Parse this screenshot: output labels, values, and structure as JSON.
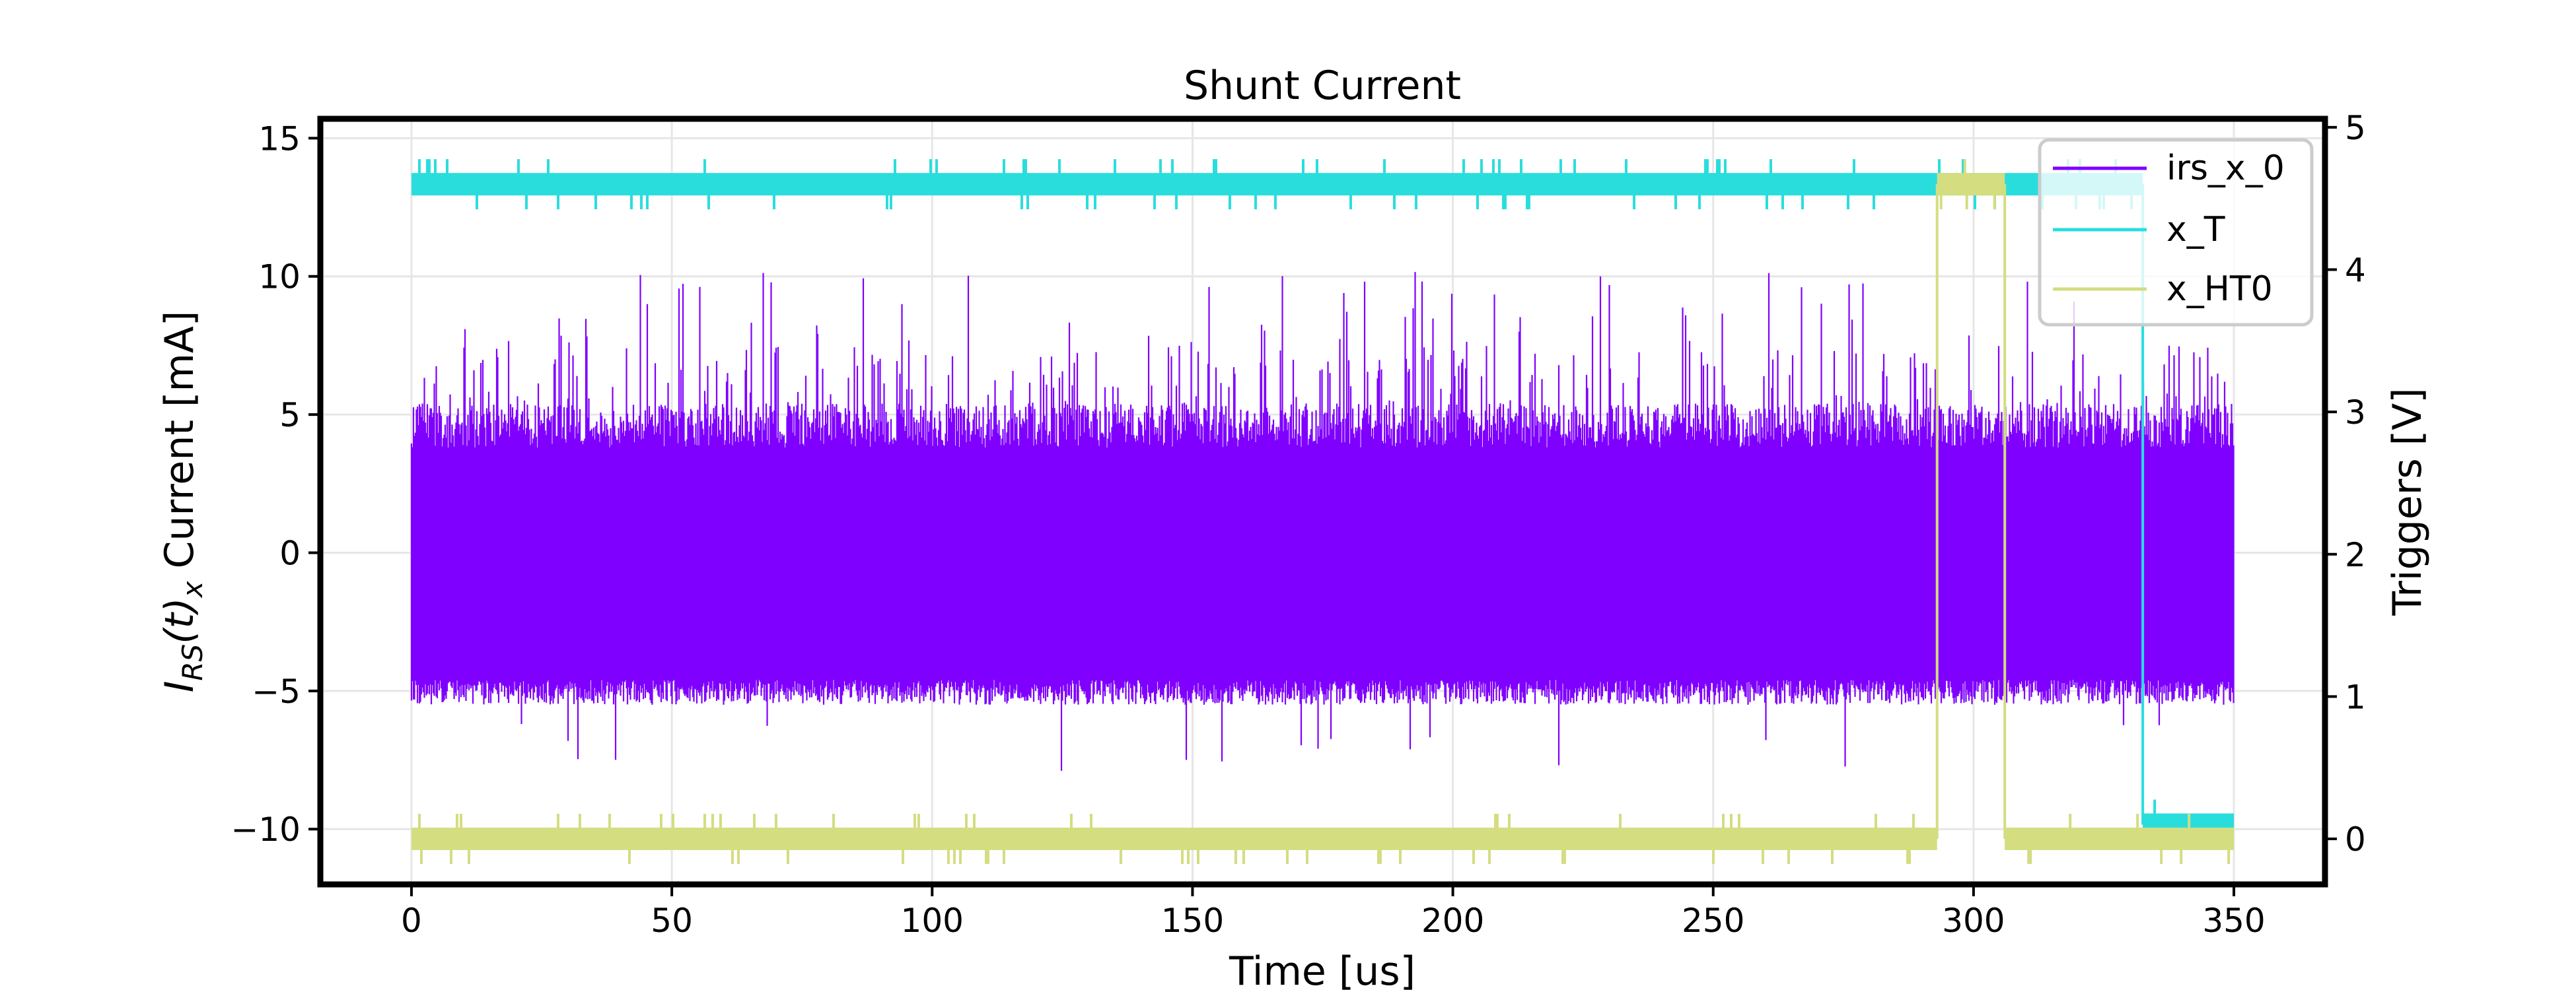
{
  "chart_data": {
    "type": "line",
    "title": "Shunt Current",
    "xlabel": "Time [us]",
    "ylabel_left": "I_RS(t)_x Current [mA]",
    "ylabel_left_parts": {
      "I": "I",
      "sub": "RS",
      "mid": "(t)",
      "sub2": "x",
      "rest": " Current [mA]"
    },
    "ylabel_right": "Triggers [V]",
    "xlim": [
      -17.5,
      367.5
    ],
    "ylim_left": [
      -12,
      15.7
    ],
    "ylim_right": [
      -0.32,
      5.06
    ],
    "xticks": [
      0,
      50,
      100,
      150,
      200,
      250,
      300,
      350
    ],
    "yticks_left": [
      15,
      10,
      5,
      0,
      -5,
      -10
    ],
    "yticks_right": [
      5,
      4,
      3,
      2,
      1,
      0
    ],
    "grid": true,
    "legend_position": "top-right",
    "series": [
      {
        "name": "irs_x_0",
        "axis": "left",
        "color": "#7f00ff",
        "x_range": [
          0,
          350
        ],
        "typical_min": -5.3,
        "typical_max": 5.0,
        "peak_max": 10.2,
        "peak_min": -7.9,
        "kind": "dense oscillation"
      },
      {
        "name": "x_T",
        "axis": "right",
        "color": "#2adddd",
        "steps": [
          {
            "x": 0,
            "y": 4.6
          },
          {
            "x": 332.5,
            "y": 0.1
          },
          {
            "x": 350,
            "y": 0.1
          }
        ]
      },
      {
        "name": "x_HT0",
        "axis": "right",
        "color": "#d4dd80",
        "steps": [
          {
            "x": 0,
            "y": 0.0
          },
          {
            "x": 293,
            "y": 4.6
          },
          {
            "x": 306,
            "y": 0.0
          },
          {
            "x": 350,
            "y": 0.0
          }
        ]
      }
    ]
  }
}
